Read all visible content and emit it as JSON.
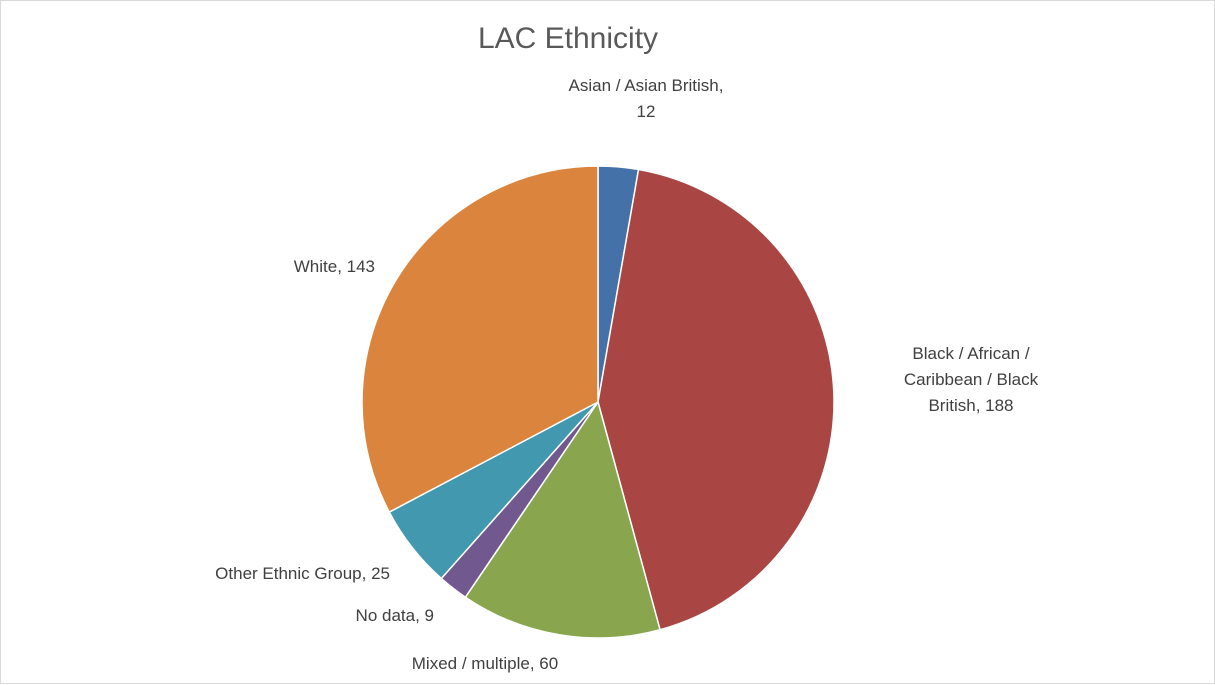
{
  "chart_data": {
    "type": "pie",
    "title": "LAC Ethnicity",
    "slices": [
      {
        "label": "Asian / Asian British",
        "value": 12,
        "color": "#4472a8",
        "label_lines": [
          "Asian / Asian British,",
          "12"
        ]
      },
      {
        "label": "Black / African / Caribbean / Black British",
        "value": 188,
        "color": "#a94643",
        "label_lines": [
          "Black / African /",
          "Caribbean / Black",
          "British, 188"
        ]
      },
      {
        "label": "Mixed / multiple",
        "value": 60,
        "color": "#89a54e",
        "label_lines": [
          "Mixed / multiple, 60"
        ]
      },
      {
        "label": "No data",
        "value": 9,
        "color": "#71588f",
        "label_lines": [
          "No data, 9"
        ]
      },
      {
        "label": "Other Ethnic Group",
        "value": 25,
        "color": "#4198af",
        "label_lines": [
          "Other Ethnic Group, 25"
        ]
      },
      {
        "label": "White",
        "value": 143,
        "color": "#db843d",
        "label_lines": [
          "White, 143"
        ]
      }
    ],
    "legend": "none"
  }
}
